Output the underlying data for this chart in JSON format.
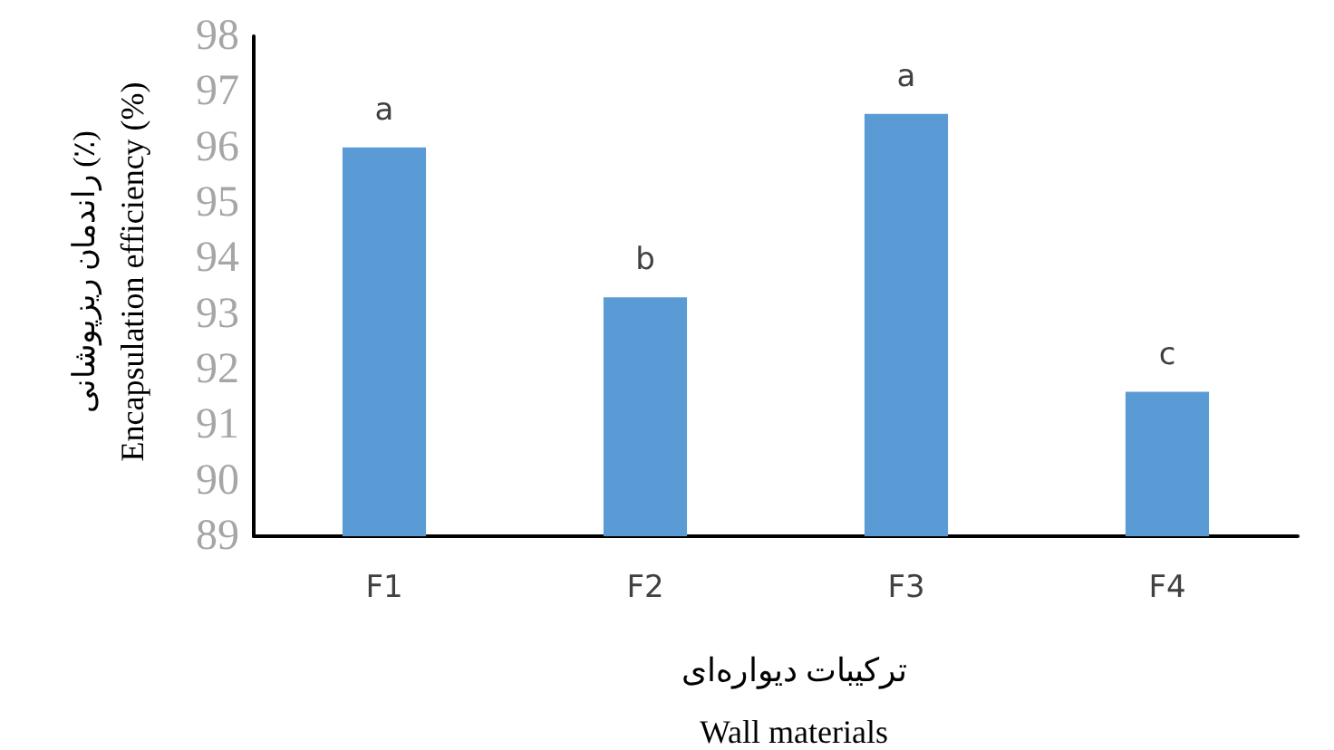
{
  "chart_data": {
    "type": "bar",
    "ylabel": "راندمان ریزپوشانی (٪)\nEncapsulation efficiency (%)",
    "xlabel": "ترکیبات دیواره‌ای\nWall materials",
    "categories": [
      "F1",
      "F2",
      "F3",
      "F4"
    ],
    "values": [
      96.0,
      93.3,
      96.6,
      91.6
    ],
    "color": "#5b9bd5",
    "ylim": [
      89,
      98
    ],
    "yticks": [
      89,
      90,
      91,
      92,
      93,
      94,
      95,
      96,
      97,
      98
    ],
    "grid": false,
    "annotations": [
      {
        "text": "a",
        "x": "F1",
        "y": 96.0
      },
      {
        "text": "b",
        "x": "F2",
        "y": 93.3
      },
      {
        "text": "a",
        "x": "F3",
        "y": 96.6
      },
      {
        "text": "c",
        "x": "F4",
        "y": 91.6
      }
    ]
  }
}
